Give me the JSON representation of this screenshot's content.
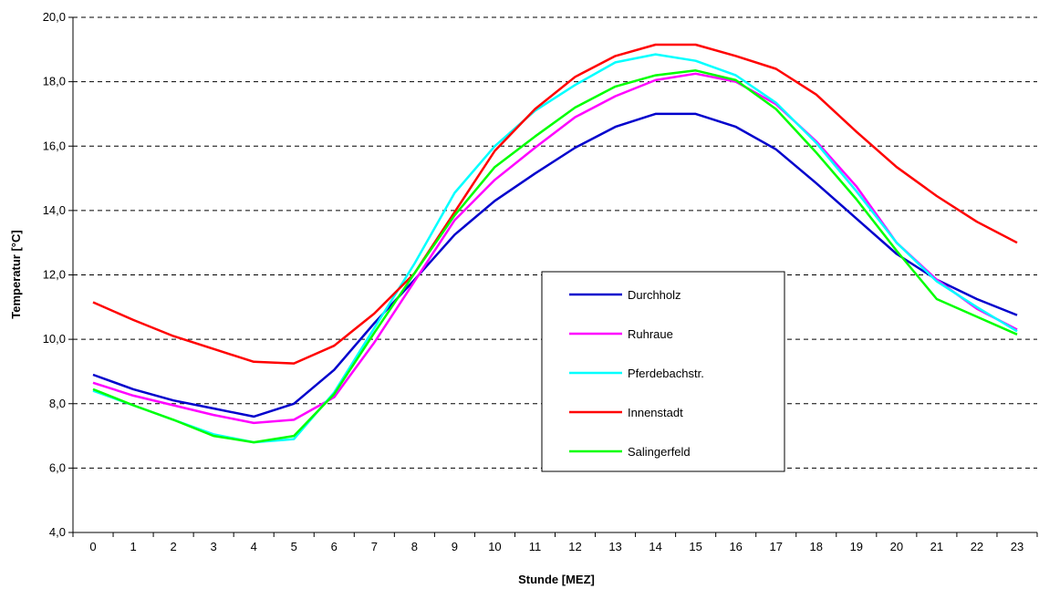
{
  "chart_data": {
    "type": "line",
    "title": "",
    "xlabel": "Stunde [MEZ]",
    "ylabel": "Temperatur [°C]",
    "x": [
      0,
      1,
      2,
      3,
      4,
      5,
      6,
      7,
      8,
      9,
      10,
      11,
      12,
      13,
      14,
      15,
      16,
      17,
      18,
      19,
      20,
      21,
      22,
      23
    ],
    "ylim": [
      4,
      20
    ],
    "yticks": [
      4,
      6,
      8,
      10,
      12,
      14,
      16,
      18,
      20
    ],
    "ytick_labels": [
      "4,0",
      "6,0",
      "8,0",
      "10,0",
      "12,0",
      "14,0",
      "16,0",
      "18,0",
      "20,0"
    ],
    "grid": "horizontal dashed",
    "legend_position": "center-right",
    "series": [
      {
        "name": "Durchholz",
        "color": "#0000cc",
        "values": [
          8.9,
          8.45,
          8.1,
          7.85,
          7.6,
          8.0,
          9.05,
          10.5,
          11.85,
          13.25,
          14.3,
          15.15,
          15.95,
          16.6,
          17.0,
          17.0,
          16.6,
          15.9,
          14.85,
          13.75,
          12.65,
          11.85,
          11.25,
          10.75
        ]
      },
      {
        "name": "Ruhraue",
        "color": "#ff00ff",
        "values": [
          8.65,
          8.25,
          7.95,
          7.65,
          7.4,
          7.5,
          8.2,
          9.9,
          11.8,
          13.7,
          14.95,
          15.95,
          16.9,
          17.55,
          18.05,
          18.25,
          18.0,
          17.3,
          16.15,
          14.75,
          13.0,
          11.85,
          10.95,
          10.3
        ]
      },
      {
        "name": "Pferdebachstr.",
        "color": "#00ffff",
        "values": [
          8.4,
          7.95,
          7.5,
          7.05,
          6.8,
          6.9,
          8.35,
          10.35,
          12.35,
          14.55,
          16.0,
          17.1,
          17.9,
          18.6,
          18.85,
          18.65,
          18.2,
          17.35,
          16.1,
          14.6,
          13.0,
          11.8,
          11.0,
          10.25
        ]
      },
      {
        "name": "Innenstadt",
        "color": "#ff0000",
        "values": [
          11.15,
          10.6,
          10.1,
          9.7,
          9.3,
          9.25,
          9.8,
          10.8,
          12.05,
          13.95,
          15.85,
          17.15,
          18.15,
          18.8,
          19.15,
          19.15,
          18.8,
          18.4,
          17.6,
          16.45,
          15.35,
          14.45,
          13.65,
          13.0
        ]
      },
      {
        "name": "Salingerfeld",
        "color": "#00ff00",
        "values": [
          8.45,
          7.95,
          7.5,
          7.0,
          6.8,
          7.0,
          8.3,
          10.2,
          12.05,
          13.85,
          15.35,
          16.3,
          17.2,
          17.85,
          18.2,
          18.35,
          18.05,
          17.15,
          15.8,
          14.35,
          12.75,
          11.25,
          10.7,
          10.15
        ]
      }
    ]
  }
}
